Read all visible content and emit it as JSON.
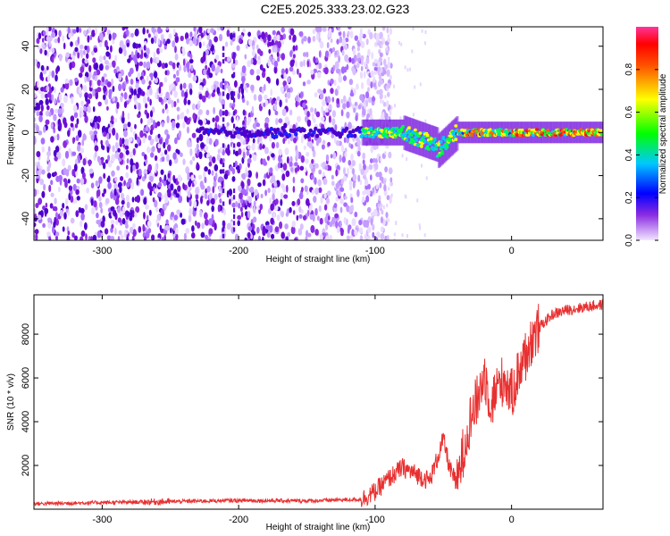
{
  "title": "C2E5.2025.333.23.02.G23",
  "chart_data": [
    {
      "type": "heatmap",
      "xlabel": "Height of straight line (km)",
      "ylabel": "Frequency (Hz)",
      "xlim": [
        -350,
        67
      ],
      "ylim": [
        -50,
        49
      ],
      "xticks": [
        -300,
        -200,
        -100,
        0
      ],
      "yticks": [
        -40,
        -20,
        0,
        20,
        40
      ],
      "colorbar": {
        "label": "Normalized spectral amplitude",
        "range": [
          0,
          1
        ],
        "ticks": [
          0.0,
          0.2,
          0.4,
          0.6,
          0.8
        ],
        "tick_labels": [
          "0.0",
          "0.2",
          "0.4",
          "0.6",
          "0.8"
        ]
      },
      "features": {
        "noise_region_km": [
          -350,
          -100
        ],
        "signal_center_hz": 0,
        "strong_signal_start_km": -110,
        "peak_amplitude": 0.95
      }
    },
    {
      "type": "line",
      "xlabel": "Height of straight line (km)",
      "ylabel": "SNR (10 * v/v)",
      "xlim": [
        -350,
        67
      ],
      "ylim": [
        0,
        9800
      ],
      "xticks": [
        -300,
        -200,
        -100,
        0
      ],
      "yticks": [
        2000,
        4000,
        6000,
        8000
      ],
      "series": [
        {
          "name": "SNR",
          "color": "#e83030",
          "x": [
            -350,
            -300,
            -250,
            -200,
            -150,
            -110,
            -100,
            -90,
            -80,
            -70,
            -60,
            -55,
            -50,
            -45,
            -40,
            -35,
            -30,
            -25,
            -20,
            -15,
            -10,
            -5,
            0,
            5,
            10,
            15,
            20,
            30,
            40,
            50,
            60,
            67
          ],
          "y": [
            250,
            300,
            350,
            400,
            380,
            450,
            800,
            1400,
            1900,
            1600,
            1300,
            2200,
            3200,
            1800,
            1100,
            2800,
            4200,
            5000,
            6200,
            4800,
            5600,
            6000,
            5200,
            6300,
            7000,
            7800,
            8300,
            8900,
            9100,
            9200,
            9300,
            9350
          ]
        }
      ]
    }
  ]
}
